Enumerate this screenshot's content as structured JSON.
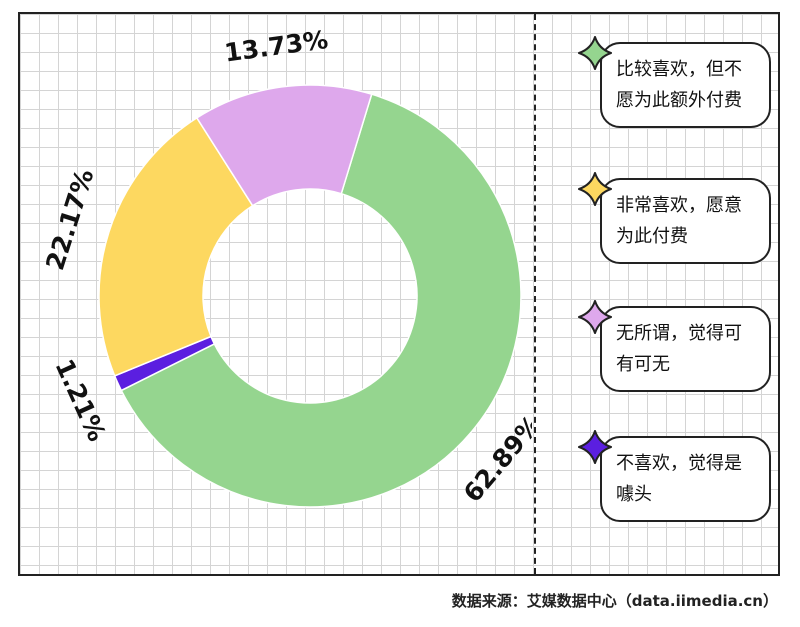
{
  "chart_data": {
    "type": "pie",
    "variant": "donut",
    "slices": [
      {
        "label": "比较喜欢，但不愿为此额外付费",
        "value": 62.89,
        "value_label": "62.89%",
        "color": "#95d58f"
      },
      {
        "label": "不喜欢，觉得是噱头",
        "value": 1.21,
        "value_label": "1.21%",
        "color": "#5b1fe0"
      },
      {
        "label": "非常喜欢，愿意为此付费",
        "value": 22.17,
        "value_label": "22.17%",
        "color": "#fdd860"
      },
      {
        "label": "无所谓，觉得可有可无",
        "value": 13.73,
        "value_label": "13.73%",
        "color": "#dea8ec"
      }
    ],
    "legend": [
      {
        "line1": "比较喜欢，但不",
        "line2": "愿为此额外付费",
        "color": "#95d58f"
      },
      {
        "line1": "非常喜欢，愿意",
        "line2": "为此付费",
        "color": "#fdd860"
      },
      {
        "line1": "无所谓，觉得可",
        "line2": "有可无",
        "color": "#dea8ec"
      },
      {
        "line1": "不喜欢，觉得是",
        "line2": "噱头",
        "color": "#5b1fe0"
      }
    ],
    "legend_position": "right"
  },
  "source": "数据来源：艾媒数据中心（data.iimedia.cn）"
}
